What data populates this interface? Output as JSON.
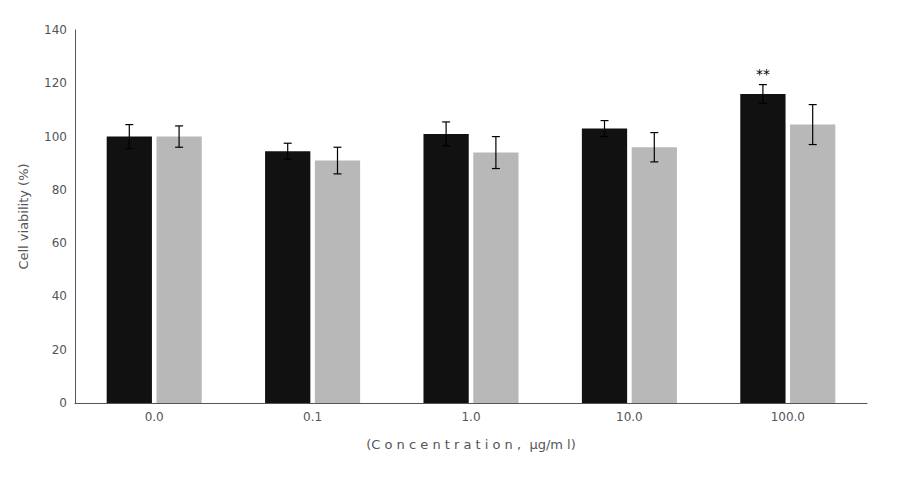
{
  "chart_data": {
    "type": "bar",
    "categories": [
      "0.0",
      "0.1",
      "1.0",
      "10.0",
      "100.0"
    ],
    "series": [
      {
        "color": "#111111",
        "values": [
          100.0,
          94.5,
          101.0,
          103.0,
          116.0
        ],
        "errors": [
          4.5,
          3.0,
          4.5,
          3.0,
          3.5
        ]
      },
      {
        "color": "#b8b8b8",
        "values": [
          100.0,
          91.0,
          94.0,
          96.0,
          104.5
        ],
        "errors": [
          4.0,
          5.0,
          6.0,
          5.5,
          7.5
        ]
      }
    ],
    "xlabel": "(C o n c e n t r a t i o n ,  μg/m l)",
    "ylabel": "Cell viability (%)",
    "ylim": [
      0,
      140
    ],
    "yticks": [
      0,
      20,
      40,
      60,
      80,
      100,
      120,
      140
    ],
    "grid": false,
    "annotations": [
      {
        "text": "**",
        "series": 0,
        "category": "100.0"
      }
    ]
  }
}
